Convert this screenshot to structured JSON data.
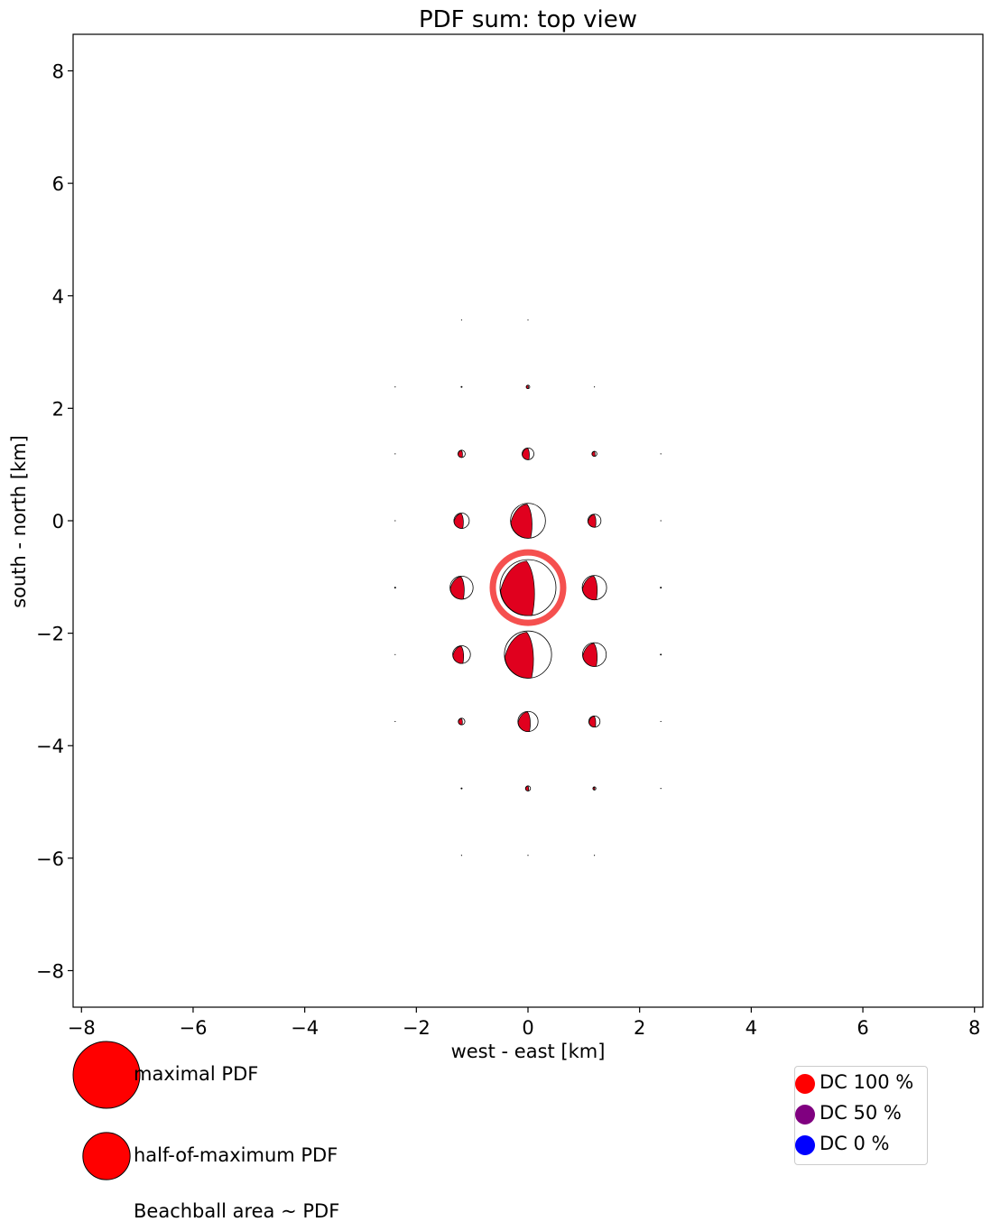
{
  "chart_data": {
    "type": "scatter",
    "title": "PDF sum: top view",
    "xlabel": "west - east [km]",
    "ylabel": "south - north [km]",
    "xlim": [
      -8.15,
      8.15
    ],
    "ylim": [
      -8.65,
      8.65
    ],
    "xticks": [
      -8,
      -6,
      -4,
      -2,
      0,
      2,
      4,
      6,
      8
    ],
    "yticks": [
      -8,
      -6,
      -4,
      -2,
      0,
      2,
      4,
      6,
      8
    ],
    "tick_labels_x": [
      "−8",
      "−6",
      "−4",
      "−2",
      "0",
      "2",
      "4",
      "6",
      "8"
    ],
    "tick_labels_y": [
      "−8",
      "−6",
      "−4",
      "−2",
      "0",
      "2",
      "4",
      "6",
      "8"
    ],
    "grid": false,
    "marker": "beachball",
    "marker_size_meaning": "Beachball area ~ PDF",
    "best_solution": {
      "x": 0,
      "y": -1.19
    },
    "points": [
      {
        "x": -1.19,
        "y": 3.57,
        "pdf": 0.0
      },
      {
        "x": 0,
        "y": 3.57,
        "pdf": 0.0
      },
      {
        "x": -2.38,
        "y": 2.38,
        "pdf": 0.0
      },
      {
        "x": -1.19,
        "y": 2.38,
        "pdf": 0.001
      },
      {
        "x": 0,
        "y": 2.38,
        "pdf": 0.004
      },
      {
        "x": 1.19,
        "y": 2.38,
        "pdf": 0.0
      },
      {
        "x": -2.38,
        "y": 1.19,
        "pdf": 0.0
      },
      {
        "x": -1.19,
        "y": 1.19,
        "pdf": 0.017
      },
      {
        "x": 0,
        "y": 1.19,
        "pdf": 0.044
      },
      {
        "x": 1.19,
        "y": 1.19,
        "pdf": 0.008
      },
      {
        "x": 2.38,
        "y": 1.19,
        "pdf": 0.0
      },
      {
        "x": -2.38,
        "y": 0.0,
        "pdf": 0.0
      },
      {
        "x": -1.19,
        "y": 0.0,
        "pdf": 0.075
      },
      {
        "x": 0,
        "y": 0.0,
        "pdf": 0.39
      },
      {
        "x": 1.19,
        "y": 0.0,
        "pdf": 0.055
      },
      {
        "x": 2.38,
        "y": 0.0,
        "pdf": 0.0
      },
      {
        "x": -2.38,
        "y": -1.19,
        "pdf": 0.001
      },
      {
        "x": -1.19,
        "y": -1.19,
        "pdf": 0.17
      },
      {
        "x": 0,
        "y": -1.19,
        "pdf": 1.0
      },
      {
        "x": 1.19,
        "y": -1.19,
        "pdf": 0.19
      },
      {
        "x": 2.38,
        "y": -1.19,
        "pdf": 0.001
      },
      {
        "x": -2.38,
        "y": -2.38,
        "pdf": 0.0
      },
      {
        "x": -1.19,
        "y": -2.38,
        "pdf": 0.1
      },
      {
        "x": 0,
        "y": -2.38,
        "pdf": 0.71
      },
      {
        "x": 1.19,
        "y": -2.38,
        "pdf": 0.18
      },
      {
        "x": 2.38,
        "y": -2.38,
        "pdf": 0.001
      },
      {
        "x": -2.38,
        "y": -3.57,
        "pdf": 0.0
      },
      {
        "x": -1.19,
        "y": -3.57,
        "pdf": 0.014
      },
      {
        "x": 0,
        "y": -3.57,
        "pdf": 0.13
      },
      {
        "x": 1.19,
        "y": -3.57,
        "pdf": 0.04
      },
      {
        "x": 2.38,
        "y": -3.57,
        "pdf": 0.0
      },
      {
        "x": -1.19,
        "y": -4.76,
        "pdf": 0.001
      },
      {
        "x": 0,
        "y": -4.76,
        "pdf": 0.008
      },
      {
        "x": 1.19,
        "y": -4.76,
        "pdf": 0.003
      },
      {
        "x": 2.38,
        "y": -4.76,
        "pdf": 0.0
      },
      {
        "x": -1.19,
        "y": -5.95,
        "pdf": 0.0
      },
      {
        "x": 0,
        "y": -5.95,
        "pdf": 0.0
      },
      {
        "x": 1.19,
        "y": -5.95,
        "pdf": 0.0
      }
    ],
    "size_legend": [
      {
        "label": "maximal PDF",
        "pdf": 1.0
      },
      {
        "label": "half-of-maximum PDF",
        "pdf": 0.5
      }
    ],
    "size_legend_note": "Beachball area ~ PDF",
    "dc_legend": [
      {
        "label": "DC 100 %",
        "color": "#ff0000"
      },
      {
        "label": "DC 50 %",
        "color": "#800080"
      },
      {
        "label": "DC 0 %",
        "color": "#0000ff"
      }
    ],
    "colors": {
      "beachball_fill": "#e0001e",
      "best_marker": "#f5504f",
      "legend_ball": "#ff0000"
    }
  }
}
